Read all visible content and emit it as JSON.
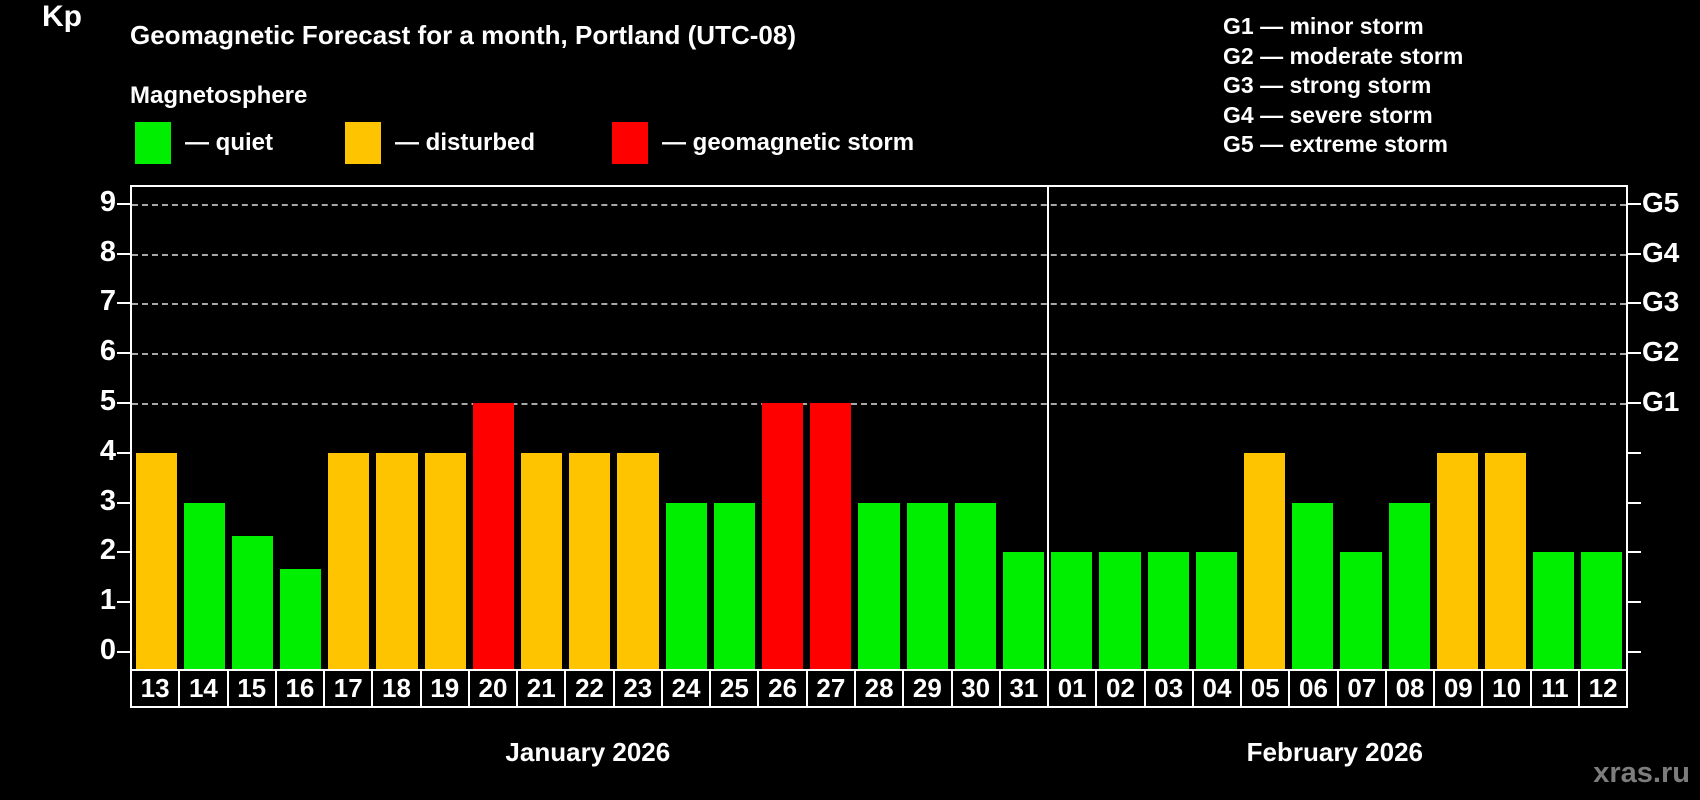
{
  "title": "Geomagnetic Forecast for a month, Portland (UTC-08)",
  "subtitle": "Magnetosphere",
  "legend": {
    "items": [
      {
        "key": "quiet",
        "label": "— quiet"
      },
      {
        "key": "disturbed",
        "label": "— disturbed"
      },
      {
        "key": "storm",
        "label": "— geomagnetic storm"
      }
    ]
  },
  "g_scale_legend": [
    "G1 — minor storm",
    "G2 — moderate storm",
    "G3 — strong storm",
    "G4 — severe storm",
    "G5 — extreme storm"
  ],
  "watermark": "xras.ru",
  "colors": {
    "quiet": "#00ee00",
    "disturbed": "#ffc400",
    "storm": "#ff0000",
    "grid": "#a8a8a8",
    "axis": "#ffffff",
    "background": "#000000"
  },
  "chart_data": {
    "type": "bar",
    "title": "Geomagnetic Forecast for a month, Portland (UTC-08)",
    "ylabel": "Kp",
    "ylim": [
      0,
      9.35
    ],
    "y_ticks": [
      0,
      1,
      2,
      3,
      4,
      5,
      6,
      7,
      8,
      9
    ],
    "gridlines_at": [
      5,
      6,
      7,
      8,
      9
    ],
    "grid": "dashed, only at G-storm levels 5-9",
    "legend_position": "top",
    "right_axis_labels": [
      {
        "kp": 5,
        "label": "G1"
      },
      {
        "kp": 6,
        "label": "G2"
      },
      {
        "kp": 7,
        "label": "G3"
      },
      {
        "kp": 8,
        "label": "G4"
      },
      {
        "kp": 9,
        "label": "G5"
      }
    ],
    "months": [
      {
        "label": "January 2026",
        "days": 19
      },
      {
        "label": "February 2026",
        "days": 12
      }
    ],
    "bars": [
      {
        "day": "13",
        "kp": 4,
        "status": "disturbed"
      },
      {
        "day": "14",
        "kp": 3,
        "status": "quiet"
      },
      {
        "day": "15",
        "kp": 2.33,
        "status": "quiet"
      },
      {
        "day": "16",
        "kp": 1.67,
        "status": "quiet"
      },
      {
        "day": "17",
        "kp": 4,
        "status": "disturbed"
      },
      {
        "day": "18",
        "kp": 4,
        "status": "disturbed"
      },
      {
        "day": "19",
        "kp": 4,
        "status": "disturbed"
      },
      {
        "day": "20",
        "kp": 5,
        "status": "storm"
      },
      {
        "day": "21",
        "kp": 4,
        "status": "disturbed"
      },
      {
        "day": "22",
        "kp": 4,
        "status": "disturbed"
      },
      {
        "day": "23",
        "kp": 4,
        "status": "disturbed"
      },
      {
        "day": "24",
        "kp": 3,
        "status": "quiet"
      },
      {
        "day": "25",
        "kp": 3,
        "status": "quiet"
      },
      {
        "day": "26",
        "kp": 5,
        "status": "storm"
      },
      {
        "day": "27",
        "kp": 5,
        "status": "storm"
      },
      {
        "day": "28",
        "kp": 3,
        "status": "quiet"
      },
      {
        "day": "29",
        "kp": 3,
        "status": "quiet"
      },
      {
        "day": "30",
        "kp": 3,
        "status": "quiet"
      },
      {
        "day": "31",
        "kp": 2,
        "status": "quiet"
      },
      {
        "day": "01",
        "kp": 2,
        "status": "quiet"
      },
      {
        "day": "02",
        "kp": 2,
        "status": "quiet"
      },
      {
        "day": "03",
        "kp": 2,
        "status": "quiet"
      },
      {
        "day": "04",
        "kp": 2,
        "status": "quiet"
      },
      {
        "day": "05",
        "kp": 4,
        "status": "disturbed"
      },
      {
        "day": "06",
        "kp": 3,
        "status": "quiet"
      },
      {
        "day": "07",
        "kp": 2,
        "status": "quiet"
      },
      {
        "day": "08",
        "kp": 3,
        "status": "quiet"
      },
      {
        "day": "09",
        "kp": 4,
        "status": "disturbed"
      },
      {
        "day": "10",
        "kp": 4,
        "status": "disturbed"
      },
      {
        "day": "11",
        "kp": 2,
        "status": "quiet"
      },
      {
        "day": "12",
        "kp": 2,
        "status": "quiet"
      }
    ]
  }
}
